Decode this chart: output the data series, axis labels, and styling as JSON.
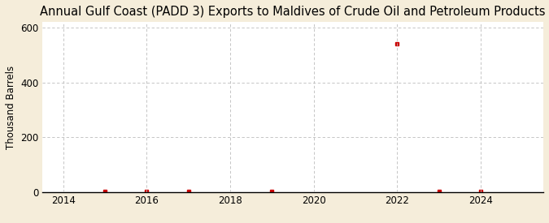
{
  "title": "Annual Gulf Coast (PADD 3) Exports to Maldives of Crude Oil and Petroleum Products",
  "ylabel": "Thousand Barrels",
  "figure_bg": "#f5edda",
  "plot_bg": "#ffffff",
  "years": [
    2015,
    2016,
    2017,
    2019,
    2022,
    2023,
    2024
  ],
  "values": [
    2,
    2,
    3,
    3,
    540,
    3,
    2
  ],
  "xlim": [
    2013.5,
    2025.5
  ],
  "ylim": [
    0,
    620
  ],
  "yticks": [
    0,
    200,
    400,
    600
  ],
  "xticks": [
    2014,
    2016,
    2018,
    2020,
    2022,
    2024
  ],
  "marker_color": "#cc0000",
  "marker_size": 3.5,
  "grid_color": "#bbbbbb",
  "title_fontsize": 10.5,
  "label_fontsize": 8.5,
  "tick_fontsize": 8.5,
  "source_fontsize": 7.5
}
